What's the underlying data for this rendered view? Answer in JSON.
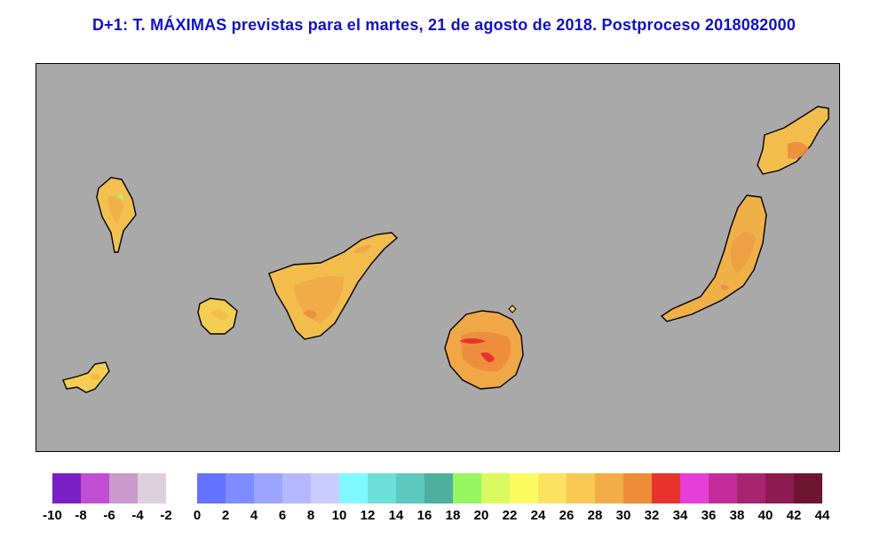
{
  "title": "D+1: T. MÁXIMAS previstas para el martes, 21 de agosto de 2018. Postproceso 2018082000",
  "legend": {
    "left_colors": [
      "#7b20c4",
      "#c04fd4",
      "#cc99cc",
      "#dcd0dc"
    ],
    "left_labels": [
      "-10",
      "-8",
      "-6",
      "-4",
      "-2"
    ],
    "right_colors": [
      "#6473ff",
      "#7f8cff",
      "#9ba5ff",
      "#b4b9ff",
      "#cacbff",
      "#7ff9ff",
      "#6ddfd9",
      "#5cc8bf",
      "#4faf9e",
      "#96f560",
      "#d9f95f",
      "#fbfb5f",
      "#fbe35f",
      "#f7c950",
      "#f2ad48",
      "#ef8c3a",
      "#e8332c",
      "#e63fd8",
      "#c42c9b",
      "#a8246e",
      "#8c1b4f",
      "#6e1531"
    ],
    "right_labels": [
      "0",
      "2",
      "4",
      "6",
      "8",
      "10",
      "12",
      "14",
      "16",
      "18",
      "20",
      "22",
      "24",
      "26",
      "28",
      "30",
      "32",
      "34",
      "36",
      "38",
      "40",
      "42",
      "44"
    ]
  },
  "islands": [
    {
      "name": "La Palma",
      "base_color": "#f3c050"
    },
    {
      "name": "La Gomera",
      "base_color": "#f5cd52"
    },
    {
      "name": "El Hierro",
      "base_color": "#f5cd52"
    },
    {
      "name": "Tenerife",
      "base_color": "#f3bd4e"
    },
    {
      "name": "Gran Canaria",
      "base_color": "#f0a745"
    },
    {
      "name": "Fuerteventura",
      "base_color": "#f0b048"
    },
    {
      "name": "Lanzarote",
      "base_color": "#f3bd4e"
    }
  ]
}
